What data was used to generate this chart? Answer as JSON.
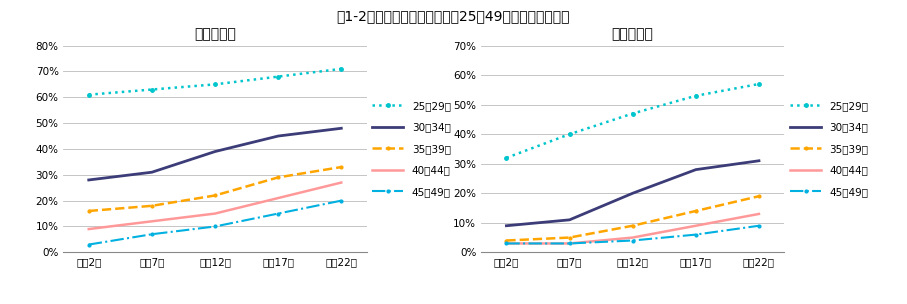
{
  "title": "図1-2　富山県の年齢階級別（25～49歳）未婚率の推移",
  "title_fontsize": 10,
  "x_labels": [
    "平成2年",
    "平成7年",
    "平成12年",
    "平成17年",
    "平成22年"
  ],
  "male_title": "未婚率　男",
  "female_title": "未婚率　女",
  "legend_labels": [
    "25～29歳",
    "30～34歳",
    "35～39歳",
    "40～44歳",
    "45～49歳"
  ],
  "male_series": {
    "25_29": [
      61,
      63,
      65,
      68,
      71
    ],
    "30_34": [
      28,
      31,
      39,
      45,
      48
    ],
    "35_39": [
      16,
      18,
      22,
      29,
      33
    ],
    "40_44": [
      9,
      12,
      15,
      21,
      27
    ],
    "45_49": [
      3,
      7,
      10,
      15,
      20
    ]
  },
  "female_series": {
    "25_29": [
      32,
      40,
      47,
      53,
      57
    ],
    "30_34": [
      9,
      11,
      20,
      28,
      31
    ],
    "35_39": [
      4,
      5,
      9,
      14,
      19
    ],
    "40_44": [
      3,
      3,
      5,
      9,
      13
    ],
    "45_49": [
      3,
      3,
      4,
      6,
      9
    ]
  },
  "colors": {
    "25_29": "#00C5CD",
    "30_34": "#3C3C78",
    "35_39": "#FFA500",
    "40_44": "#FF9999",
    "45_49": "#00B0E0"
  },
  "male_ylim": [
    0,
    80
  ],
  "male_yticks": [
    0,
    10,
    20,
    30,
    40,
    50,
    60,
    70,
    80
  ],
  "female_ylim": [
    0,
    70
  ],
  "female_yticks": [
    0,
    10,
    20,
    30,
    40,
    50,
    60,
    70
  ],
  "bg_color": "#FFFFFF",
  "grid_color": "#BBBBBB"
}
